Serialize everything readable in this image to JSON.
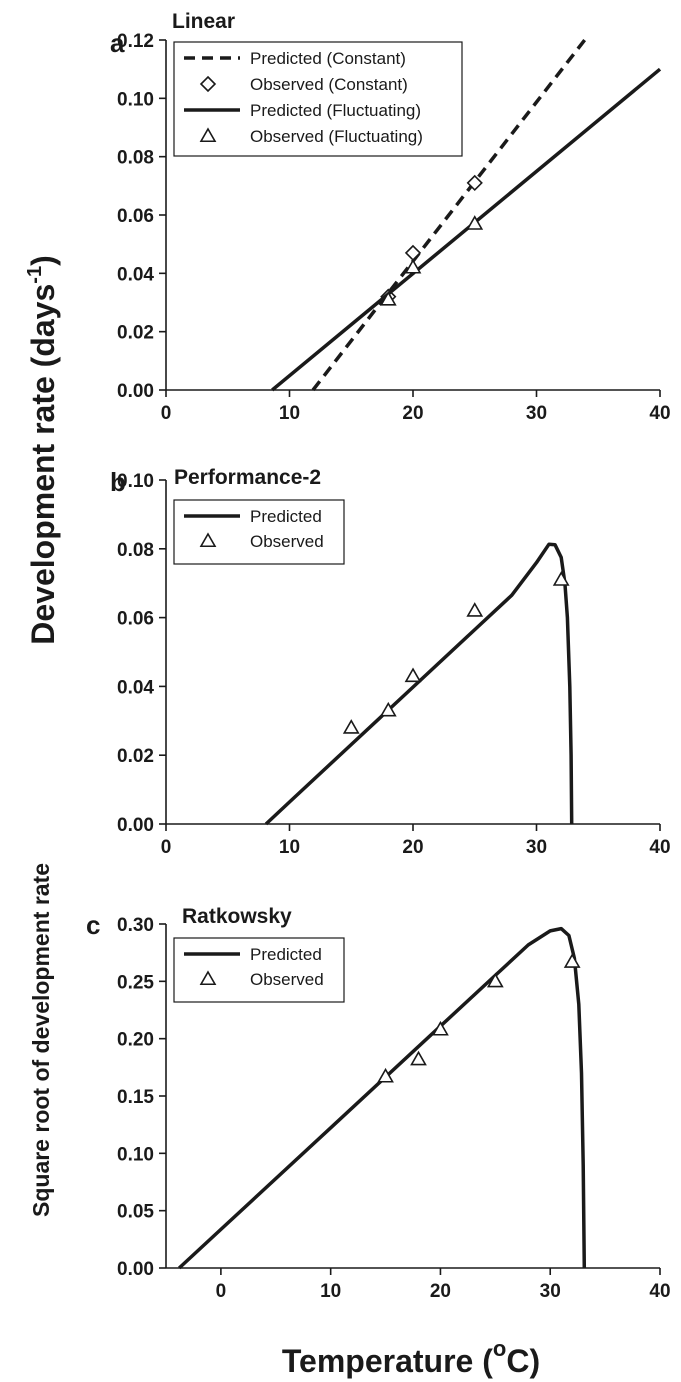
{
  "figure": {
    "ylabel_main": "Development rate (days",
    "ylabel_main_sup": "-1",
    "ylabel_main_close": ")",
    "ylabel_c": "Square root of development rate",
    "xlabel_prefix": "Temperature (",
    "xlabel_sup": "o",
    "xlabel_suffix": "C)"
  },
  "chart_data": [
    {
      "panel": "a",
      "title": "Linear",
      "type": "line",
      "xlim": [
        0,
        40
      ],
      "ylim": [
        0,
        0.12
      ],
      "xticks": [
        0,
        10,
        20,
        30,
        40
      ],
      "yticks": [
        0.0,
        0.02,
        0.04,
        0.06,
        0.08,
        0.1,
        0.12
      ],
      "ytick_labels": [
        "0.00",
        "0.02",
        "0.04",
        "0.06",
        "0.08",
        "0.10",
        "0.12"
      ],
      "legend_position": "top-left",
      "series": [
        {
          "name": "Predicted (Constant)",
          "kind": "line",
          "style": "dashed",
          "x": [
            11.9,
            33.9
          ],
          "y": [
            0.0,
            0.12
          ]
        },
        {
          "name": "Observed (Constant)",
          "kind": "points",
          "marker": "diamond",
          "x": [
            18,
            20,
            25
          ],
          "y": [
            0.032,
            0.047,
            0.071
          ]
        },
        {
          "name": "Predicted (Fluctuating)",
          "kind": "line",
          "style": "solid",
          "x": [
            8.6,
            40
          ],
          "y": [
            0.0,
            0.11
          ]
        },
        {
          "name": "Observed (Fluctuating)",
          "kind": "points",
          "marker": "triangle",
          "x": [
            18,
            20,
            25
          ],
          "y": [
            0.031,
            0.042,
            0.057
          ]
        }
      ]
    },
    {
      "panel": "b",
      "title": "Performance-2",
      "type": "line",
      "xlim": [
        0,
        40
      ],
      "ylim": [
        0,
        0.1
      ],
      "xticks": [
        0,
        10,
        20,
        30,
        40
      ],
      "yticks": [
        0.0,
        0.02,
        0.04,
        0.06,
        0.08,
        0.1
      ],
      "ytick_labels": [
        "0.00",
        "0.02",
        "0.04",
        "0.06",
        "0.08",
        "0.10"
      ],
      "legend_position": "top-left",
      "series": [
        {
          "name": "Predicted",
          "kind": "line",
          "style": "solid",
          "x": [
            8.1,
            10,
            15,
            20,
            25,
            28,
            30,
            31,
            31.5,
            32.0,
            32.3,
            32.5,
            32.7,
            32.8,
            32.85
          ],
          "y": [
            0.0,
            0.0064,
            0.0231,
            0.0398,
            0.0565,
            0.0665,
            0.076,
            0.0813,
            0.0812,
            0.0775,
            0.07,
            0.06,
            0.04,
            0.02,
            0.0
          ]
        },
        {
          "name": "Observed",
          "kind": "points",
          "marker": "triangle",
          "x": [
            15,
            18,
            20,
            25,
            32
          ],
          "y": [
            0.028,
            0.033,
            0.043,
            0.062,
            0.071
          ]
        }
      ]
    },
    {
      "panel": "c",
      "title": "Ratkowsky",
      "type": "line",
      "xlim": [
        -5,
        40
      ],
      "ylim": [
        0,
        0.3
      ],
      "xticks": [
        0,
        10,
        20,
        30,
        40
      ],
      "yticks": [
        0.0,
        0.05,
        0.1,
        0.15,
        0.2,
        0.25,
        0.3
      ],
      "ytick_labels": [
        "0.00",
        "0.05",
        "0.10",
        "0.15",
        "0.20",
        "0.25",
        "0.30"
      ],
      "legend_position": "top-left",
      "series": [
        {
          "name": "Predicted",
          "kind": "line",
          "style": "solid",
          "x": [
            -3.8,
            0,
            10,
            20,
            25,
            28,
            30,
            31,
            31.7,
            32.2,
            32.6,
            32.85,
            33.0,
            33.1
          ],
          "y": [
            0.0,
            0.0337,
            0.1223,
            0.2109,
            0.2552,
            0.2818,
            0.294,
            0.296,
            0.29,
            0.27,
            0.23,
            0.17,
            0.09,
            0.0
          ]
        },
        {
          "name": "Observed",
          "kind": "points",
          "marker": "triangle",
          "x": [
            15,
            18,
            20,
            25,
            32
          ],
          "y": [
            0.167,
            0.182,
            0.208,
            0.25,
            0.267
          ]
        }
      ]
    }
  ]
}
